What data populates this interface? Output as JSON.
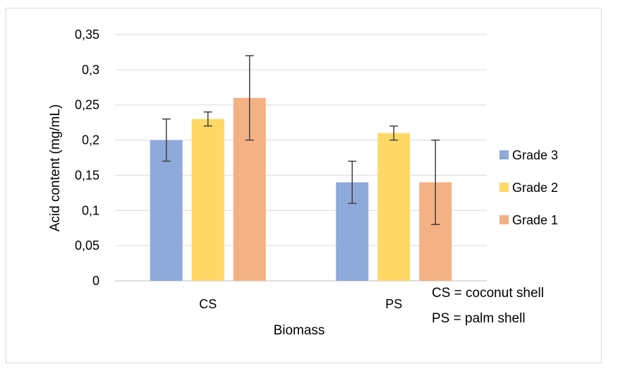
{
  "chart_data": {
    "type": "bar",
    "categories": [
      "CS",
      "PS"
    ],
    "series": [
      {
        "name": "Grade 3",
        "color": "#8eaadb",
        "values": [
          0.2,
          0.14
        ],
        "errors": [
          0.03,
          0.03
        ]
      },
      {
        "name": "Grade 2",
        "color": "#ffd966",
        "values": [
          0.23,
          0.21
        ],
        "errors": [
          0.01,
          0.01
        ]
      },
      {
        "name": "Grade 1",
        "color": "#f4b183",
        "values": [
          0.26,
          0.14
        ],
        "errors": [
          0.06,
          0.06
        ]
      }
    ],
    "title": "",
    "xlabel": "Biomass",
    "ylabel": "Acid content (mg/mL)",
    "ylim": [
      0,
      0.35
    ],
    "yticks": [
      0,
      0.05,
      0.1,
      0.15,
      0.2,
      0.25,
      0.3,
      0.35
    ],
    "ytick_labels": [
      "0",
      "0,05",
      "0,1",
      "0,15",
      "0,2",
      "0,25",
      "0,3",
      "0,35"
    ],
    "grid": true,
    "legend_position": "right"
  },
  "annotations": [
    "CS = coconut shell",
    "PS = palm shell"
  ]
}
